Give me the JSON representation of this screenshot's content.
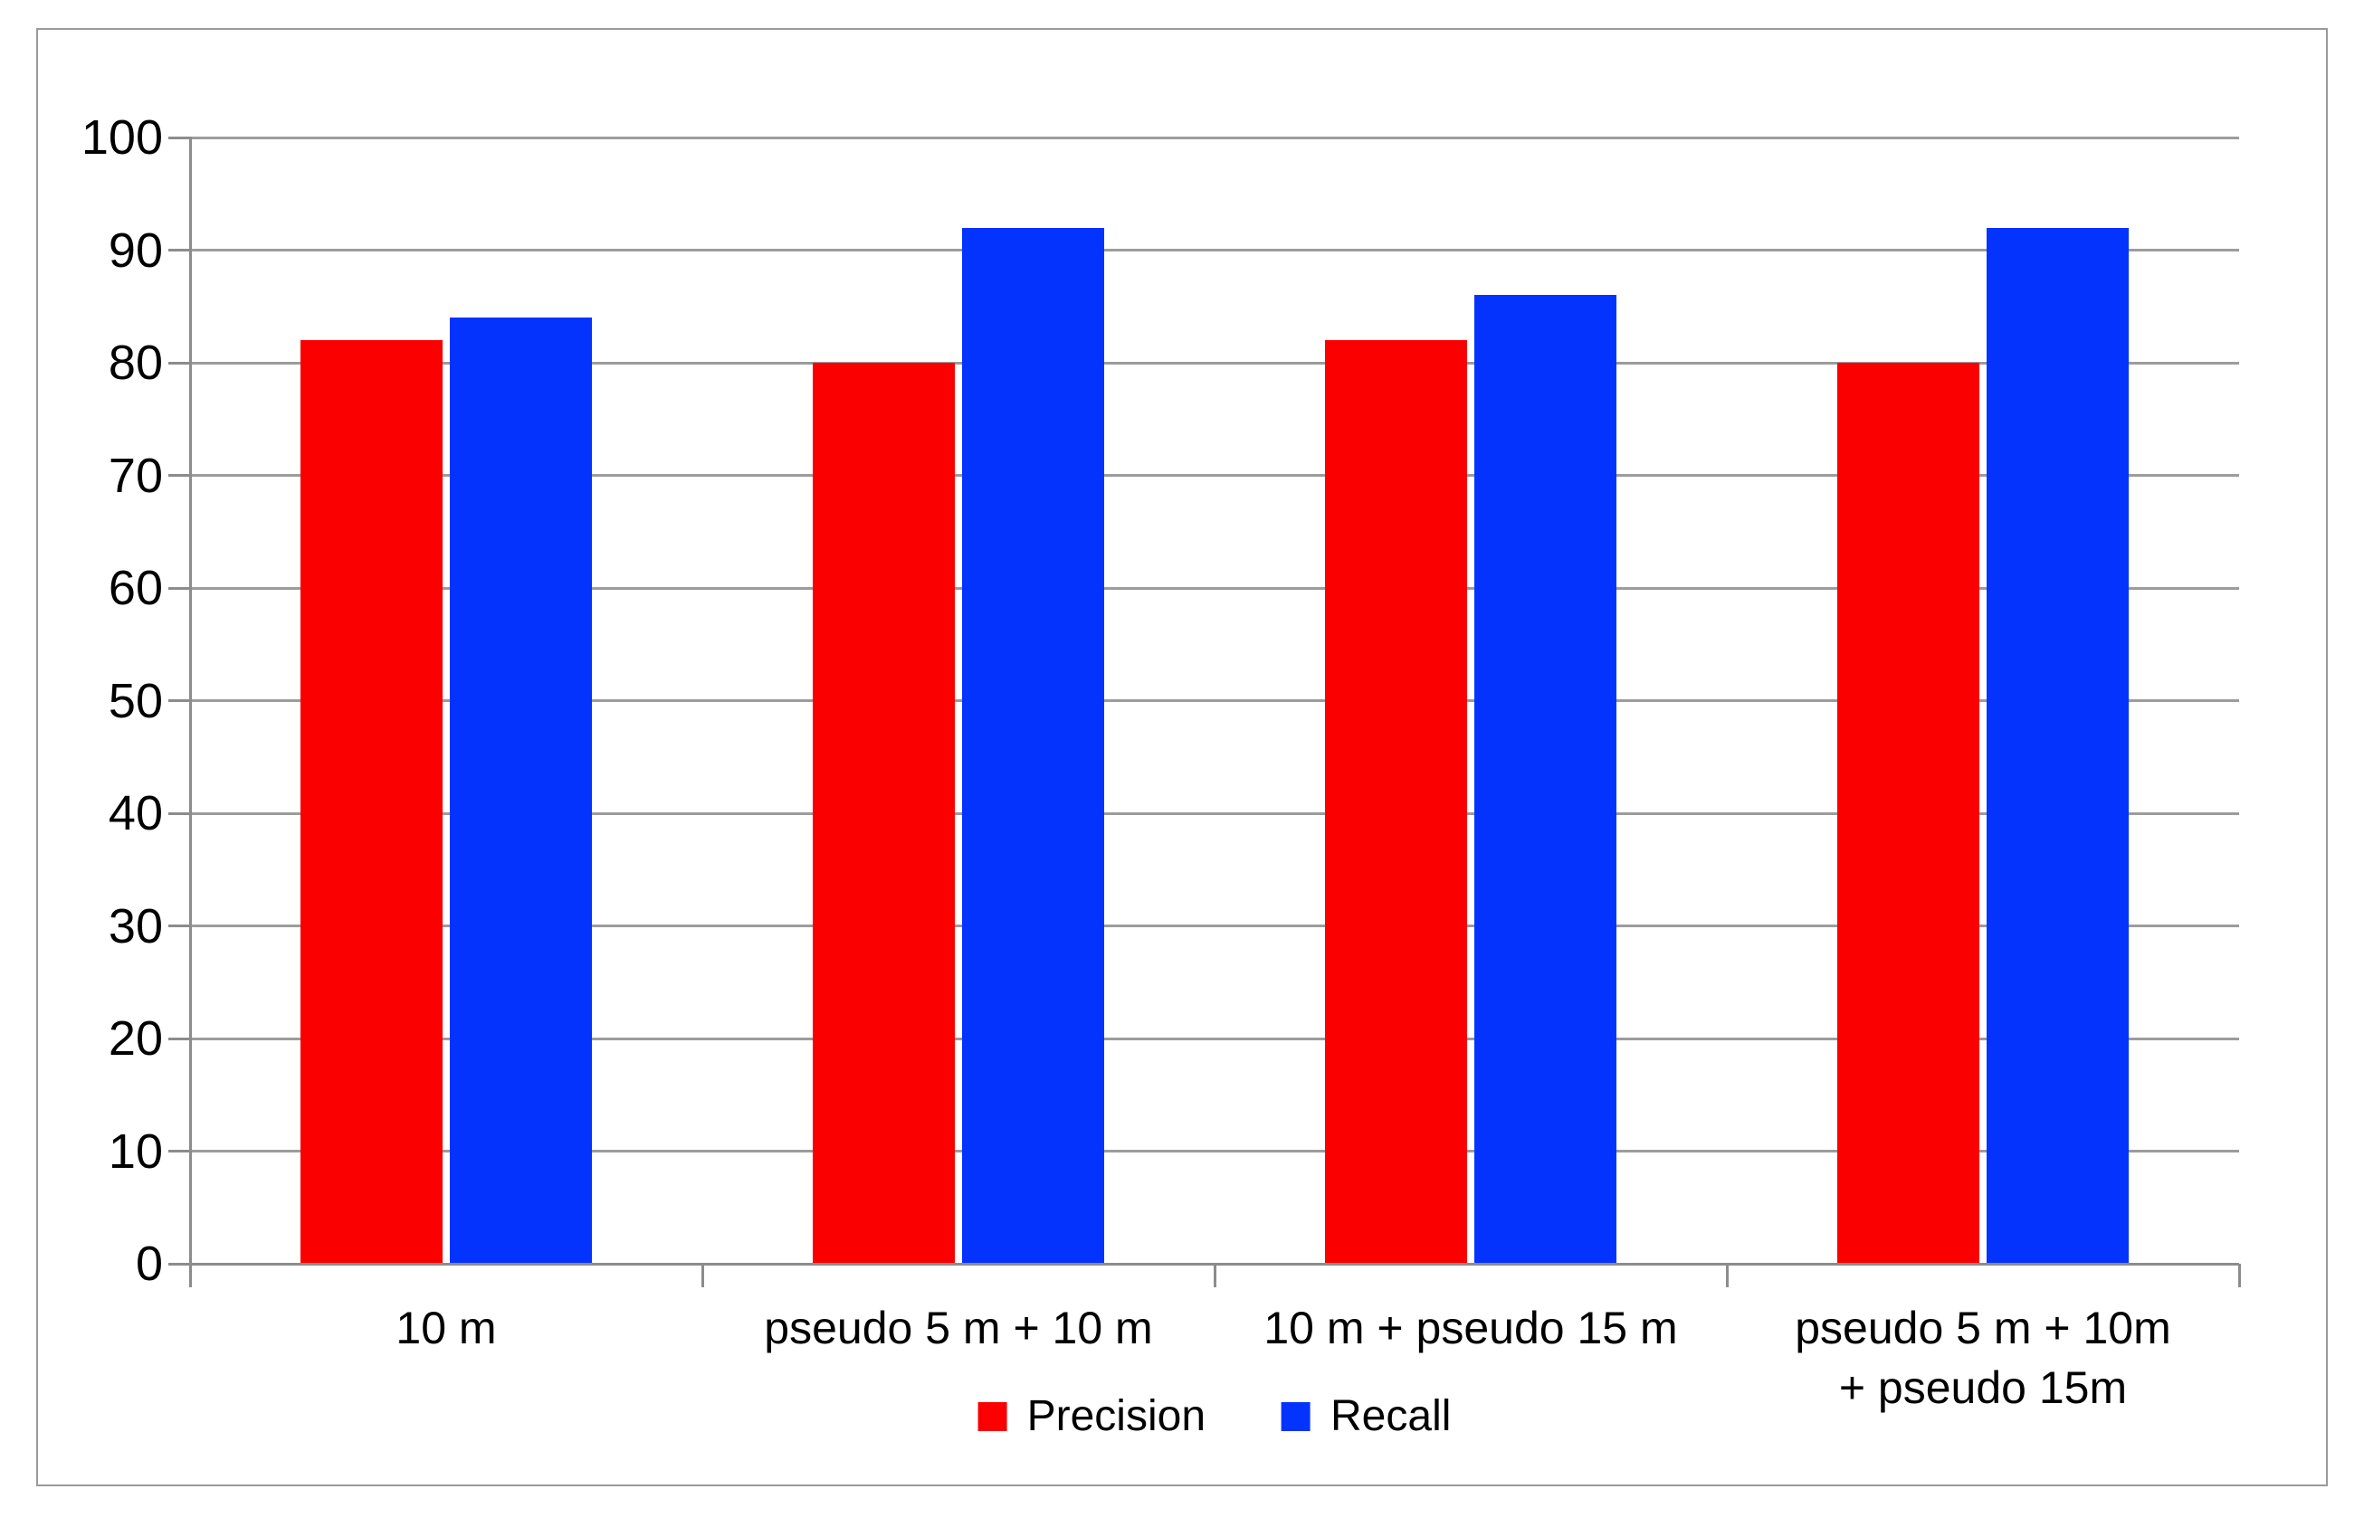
{
  "chart_data": {
    "type": "bar",
    "categories": [
      "10 m",
      "pseudo 5 m + 10 m",
      "10 m + pseudo 15 m",
      "pseudo 5 m + 10m\n+ pseudo 15m"
    ],
    "series": [
      {
        "name": "Precision",
        "color": "#fa0000",
        "values": [
          82,
          80,
          82,
          80
        ]
      },
      {
        "name": "Recall",
        "color": "#0433fe",
        "values": [
          84,
          92,
          86,
          92
        ]
      }
    ],
    "ylim": [
      0,
      100
    ],
    "y_tick_step": 10,
    "y_ticks": [
      0,
      10,
      20,
      30,
      40,
      50,
      60,
      70,
      80,
      90,
      100
    ],
    "grid": true,
    "legend_position": "bottom-center"
  },
  "style": {
    "axis_line_color": "#8c8c8c",
    "gridline_color": "#9c9c9c",
    "frame_border_color": "#9a9a9a",
    "text_color": "#000000",
    "background": "#ffffff"
  }
}
